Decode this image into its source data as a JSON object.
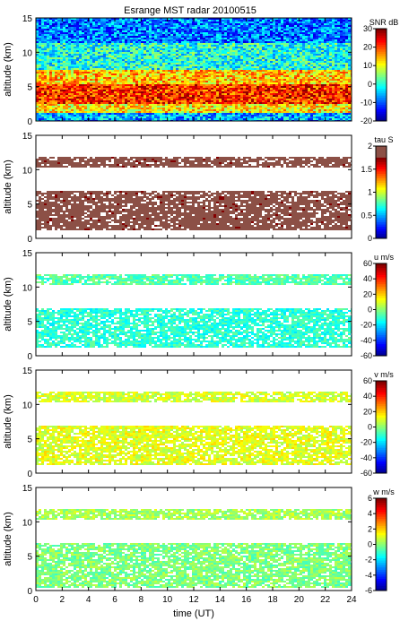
{
  "chart_data": {
    "title": "Esrange MST radar 20100515",
    "xlabel": "time (UT)",
    "xlim": [
      0,
      24
    ],
    "xticks": [
      "0",
      "2",
      "4",
      "6",
      "8",
      "10",
      "12",
      "14",
      "16",
      "18",
      "20",
      "22",
      "24"
    ],
    "panels": [
      {
        "type": "heatmap",
        "ylabel": "altitude (km)",
        "ylim": [
          0,
          15
        ],
        "yticks": [
          "0",
          "5",
          "10",
          "15"
        ],
        "colorbar": {
          "label": "SNR dB",
          "range": [
            -20,
            30
          ],
          "ticks": [
            "30",
            "20",
            "10",
            "0",
            "-10",
            "-20"
          ]
        },
        "field": "snr",
        "layers": [
          {
            "alt": [
              0.3,
              1.2
            ],
            "value": -5
          },
          {
            "alt": [
              1.2,
              2.5
            ],
            "value": 12
          },
          {
            "alt": [
              2.5,
              5.5
            ],
            "value": 22
          },
          {
            "alt": [
              5.5,
              7.5
            ],
            "value": 14
          },
          {
            "alt": [
              7.5,
              11.5
            ],
            "value": 0
          },
          {
            "alt": [
              11.5,
              15
            ],
            "value": -8
          }
        ]
      },
      {
        "type": "heatmap",
        "ylabel": "altitude (km)",
        "ylim": [
          0,
          15
        ],
        "yticks": [
          "0",
          "5",
          "10",
          "15"
        ],
        "colorbar": {
          "label": "tau S",
          "range": [
            0,
            2
          ],
          "ticks": [
            "2",
            "1.5",
            "1",
            "0.5",
            "0"
          ]
        },
        "field": "tau",
        "layers": [
          {
            "alt": [
              1.2,
              7.0
            ],
            "value": 1.9
          },
          {
            "alt": [
              10.5,
              12.0
            ],
            "value": 1.9
          }
        ]
      },
      {
        "type": "heatmap",
        "ylabel": "altitude (km)",
        "ylim": [
          0,
          15
        ],
        "yticks": [
          "0",
          "5",
          "10",
          "15"
        ],
        "colorbar": {
          "label": "u m/s",
          "range": [
            -60,
            60
          ],
          "ticks": [
            "60",
            "40",
            "20",
            "0",
            "-20",
            "-40",
            "-60"
          ]
        },
        "field": "u",
        "layers": [
          {
            "alt": [
              1.2,
              7.0
            ],
            "value": -10
          },
          {
            "alt": [
              10.5,
              12.0
            ],
            "value": -5
          }
        ]
      },
      {
        "type": "heatmap",
        "ylabel": "altitude (km)",
        "ylim": [
          0,
          15
        ],
        "yticks": [
          "0",
          "5",
          "10",
          "15"
        ],
        "colorbar": {
          "label": "v m/s",
          "range": [
            -60,
            60
          ],
          "ticks": [
            "60",
            "40",
            "20",
            "0",
            "-20",
            "-40",
            "-60"
          ]
        },
        "field": "v",
        "layers": [
          {
            "alt": [
              1.2,
              7.0
            ],
            "value": 12
          },
          {
            "alt": [
              10.5,
              12.0
            ],
            "value": 10
          }
        ]
      },
      {
        "type": "heatmap",
        "ylabel": "altitude (km)",
        "ylim": [
          0,
          15
        ],
        "yticks": [
          "0",
          "5",
          "10",
          "15"
        ],
        "colorbar": {
          "label": "w m/s",
          "range": [
            -6,
            6
          ],
          "ticks": [
            "6",
            "4",
            "2",
            "0",
            "-2",
            "-4",
            "-6"
          ]
        },
        "field": "w",
        "layers": [
          {
            "alt": [
              0.5,
              7.0
            ],
            "value": 0
          },
          {
            "alt": [
              10.5,
              12.0
            ],
            "value": 0.5
          }
        ]
      }
    ]
  }
}
